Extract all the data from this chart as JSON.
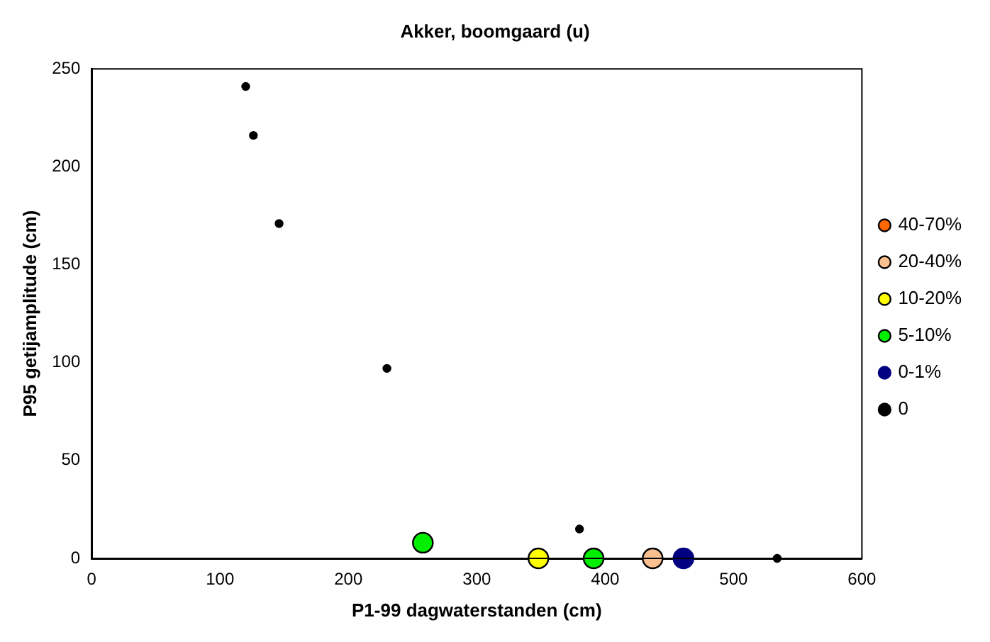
{
  "chart_data": {
    "type": "scatter",
    "title": "Akker, boomgaard (u)",
    "xlabel": "P1-99 dagwaterstanden (cm)",
    "ylabel": "P95 getijamplitude (cm)",
    "xlim": [
      0,
      600
    ],
    "xticks": [
      0,
      100,
      200,
      300,
      400,
      500,
      600
    ],
    "ylim": [
      0,
      250
    ],
    "yticks": [
      0,
      50,
      100,
      150,
      200,
      250
    ],
    "grid": false,
    "legend": "right",
    "marker": "circle",
    "series": [
      {
        "name": "40-70%",
        "color": "#ff6600"
      },
      {
        "name": "20-40%",
        "color": "#fac090",
        "x": [
          437
        ],
        "values": [
          0
        ]
      },
      {
        "name": "10-20%",
        "color": "#ffff00",
        "x": [
          348
        ],
        "values": [
          0
        ]
      },
      {
        "name": "5-10%",
        "color": "#00ee00",
        "x": [
          258,
          391
        ],
        "values": [
          8,
          0
        ]
      },
      {
        "name": "0-1%",
        "color": "#000080",
        "x": [
          461
        ],
        "values": [
          0
        ]
      },
      {
        "name": "0",
        "color": "#000000",
        "x": [
          120,
          126,
          146,
          230,
          380,
          534
        ],
        "values": [
          241,
          216,
          171,
          97,
          15,
          0
        ]
      }
    ]
  }
}
